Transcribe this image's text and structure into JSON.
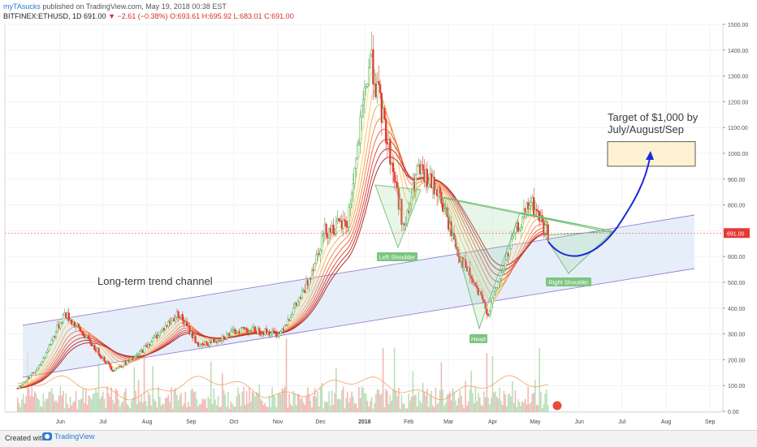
{
  "header": {
    "author": "myTAsucks",
    "published": "published on TradingView.com, May 19, 2018 00:38 EST",
    "symbol": "BITFINEX:ETHUSD, 1D",
    "last": "691.00",
    "change": "−2.61 (−0.38%)",
    "ohlc": "O:693.61 H:695.92 L:683.01 C:691.00"
  },
  "footer": {
    "created_with": "Created with",
    "brand": "TradingView"
  },
  "colors": {
    "up": "#4caf50",
    "down": "#e53935",
    "channel_fill": "#dce8f6",
    "channel_line": "#9b7ed6",
    "pattern": "#6fbf73",
    "arrow": "#1a2bd6",
    "target_fill": "#fdf3d3",
    "price_line": "#e53935"
  },
  "chart_data": {
    "type": "candlestick",
    "title": "BITFINEX:ETHUSD, 1D",
    "x_ticks": [
      "Jun",
      "Jul",
      "Aug",
      "Sep",
      "Oct",
      "Nov",
      "Dec",
      "2018",
      "Feb",
      "Mar",
      "Apr",
      "May",
      "Jun",
      "Jul",
      "Aug",
      "Sep"
    ],
    "y_ticks": [
      "1500.00",
      "1400.00",
      "1300.00",
      "1200.00",
      "1100.00",
      "1000.00",
      "900.00",
      "800.00",
      "700.00",
      "600.00",
      "500.00",
      "400.00",
      "300.00",
      "200.00",
      "100.00",
      "0.00"
    ],
    "y_range": [
      0,
      1500
    ],
    "last_price_label": "691.00",
    "approx_close_path": [
      {
        "date": "2017-05-10",
        "price": 90
      },
      {
        "date": "2017-05-25",
        "price": 170
      },
      {
        "date": "2017-06-12",
        "price": 380
      },
      {
        "date": "2017-06-25",
        "price": 300
      },
      {
        "date": "2017-07-16",
        "price": 160
      },
      {
        "date": "2017-08-01",
        "price": 210
      },
      {
        "date": "2017-08-31",
        "price": 380
      },
      {
        "date": "2017-09-15",
        "price": 250
      },
      {
        "date": "2017-10-15",
        "price": 320
      },
      {
        "date": "2017-11-10",
        "price": 300
      },
      {
        "date": "2017-11-28",
        "price": 470
      },
      {
        "date": "2017-12-12",
        "price": 700
      },
      {
        "date": "2017-12-28",
        "price": 730
      },
      {
        "date": "2018-01-13",
        "price": 1380
      },
      {
        "date": "2018-01-25",
        "price": 1050
      },
      {
        "date": "2018-02-06",
        "price": 700
      },
      {
        "date": "2018-02-15",
        "price": 930
      },
      {
        "date": "2018-03-01",
        "price": 860
      },
      {
        "date": "2018-03-17",
        "price": 600
      },
      {
        "date": "2018-04-06",
        "price": 380
      },
      {
        "date": "2018-04-24",
        "price": 680
      },
      {
        "date": "2018-05-06",
        "price": 810
      },
      {
        "date": "2018-05-18",
        "price": 691
      }
    ],
    "volume": "histogram at bottom with orange moving average",
    "ema_ribbon": "multiple exponential moving averages (yellow to red)",
    "annotations": {
      "channel_label": "Long-term trend channel",
      "left_shoulder": "Left Shoulder",
      "head": "Head",
      "right_shoulder": "Right Shoulder",
      "target_text_1": "Target of $1,000 by",
      "target_text_2": "July/August/Sep",
      "target_zone": [
        950,
        1045
      ]
    },
    "grid": true
  }
}
